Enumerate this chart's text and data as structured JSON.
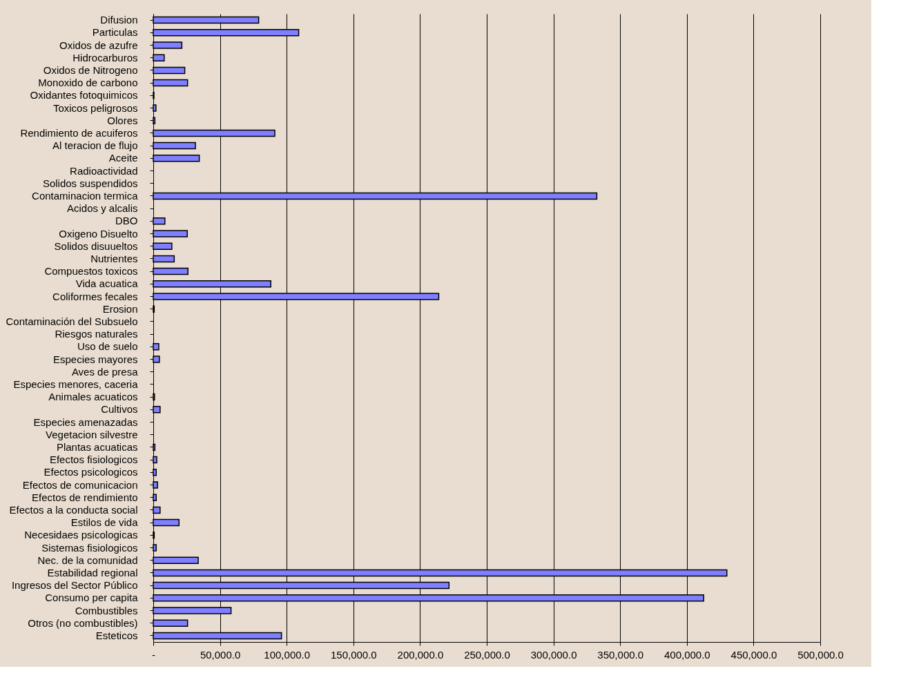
{
  "chart_data": {
    "type": "bar",
    "orientation": "horizontal",
    "color": "#7f7fff",
    "grid": "x",
    "categories": [
      "Difusion",
      "Particulas",
      "Oxidos de azufre",
      "Hidrocarburos",
      "Oxidos de Nitrogeno",
      "Monoxido de carbono",
      "Oxidantes fotoquimicos",
      "Toxicos peligrosos",
      "Olores",
      "Rendimiento de acuiferos",
      "Al teracion de flujo",
      "Aceite",
      "Radioactividad",
      "Solidos suspendidos",
      "Contaminacion termica",
      "Acidos y alcalis",
      "DBO",
      "Oxigeno Disuelto",
      "Solidos disuueltos",
      "Nutrientes",
      "Compuestos toxicos",
      "Vida acuatica",
      "Coliformes fecales",
      "Erosion",
      "Contaminación del Subsuelo",
      "Riesgos naturales",
      "Uso de suelo",
      "Especies mayores",
      "Aves de presa",
      "Especies menores, caceria",
      "Animales acuaticos",
      "Cultivos",
      "Especies amenazadas",
      "Vegetacion silvestre",
      "Plantas acuaticas",
      "Efectos fisiologicos",
      "Efectos psicologicos",
      "Efectos de comunicacion",
      "Efectos de rendimiento",
      "Efectos a la conducta social",
      "Estilos de vida",
      "Necesidaes psicologicas",
      "Sistemas fisiologicos",
      "Nec. de la comunidad",
      "Estabilidad regional",
      "Ingresos del Sector Público",
      "Consumo per capita",
      "Combustibles",
      "Otros (no combustibles)",
      "Esteticos"
    ],
    "values": [
      79000,
      109000,
      21400,
      8200,
      23600,
      25700,
      500,
      2000,
      1200,
      91100,
      31600,
      34500,
      0,
      0,
      332500,
      0,
      8700,
      25500,
      13900,
      15700,
      26000,
      88100,
      214000,
      700,
      0,
      0,
      4100,
      4600,
      0,
      0,
      900,
      5100,
      0,
      0,
      1200,
      2600,
      2200,
      3200,
      2200,
      5100,
      19300,
      700,
      2200,
      33700,
      430000,
      221700,
      412600,
      58300,
      25700,
      96100
    ],
    "xlim": [
      0,
      500000
    ],
    "xticks": [
      {
        "value": 0,
        "label": "-"
      },
      {
        "value": 50000,
        "label": "50,000.0"
      },
      {
        "value": 100000,
        "label": "100,000.0"
      },
      {
        "value": 150000,
        "label": "150,000.0"
      },
      {
        "value": 200000,
        "label": "200,000.0"
      },
      {
        "value": 250000,
        "label": "250,000.0"
      },
      {
        "value": 300000,
        "label": "300,000.0"
      },
      {
        "value": 350000,
        "label": "350,000.0"
      },
      {
        "value": 400000,
        "label": "400,000.0"
      },
      {
        "value": 450000,
        "label": "450,000.0"
      },
      {
        "value": 500000,
        "label": "500,000.0"
      }
    ]
  }
}
